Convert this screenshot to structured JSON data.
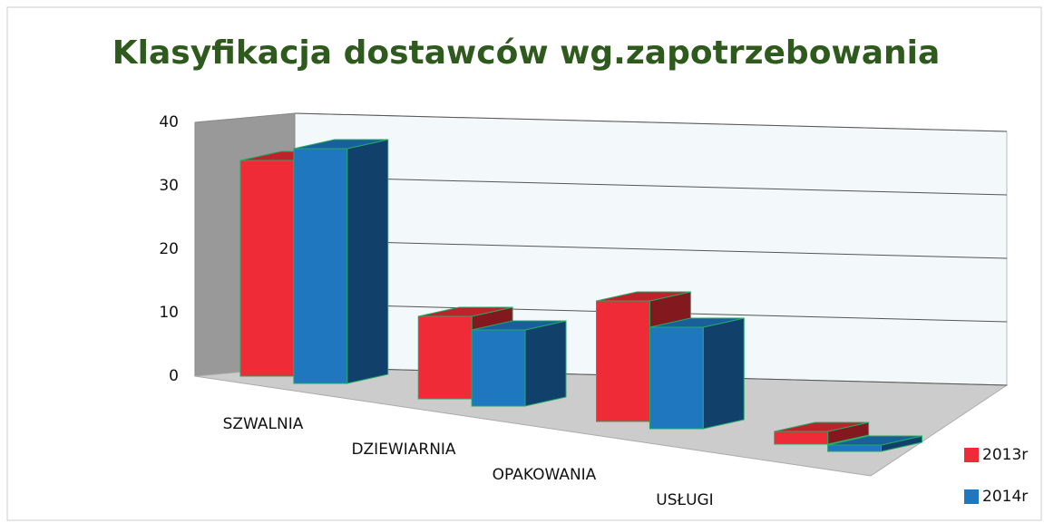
{
  "chart_data": {
    "type": "bar",
    "title": "Klasyfikacja dostawców wg.zapotrzebowania",
    "categories": [
      "SZWALNIA",
      "DZIEWIARNIA",
      "OPAKOWANIA",
      "USŁUGI"
    ],
    "series": [
      {
        "name": "2013r",
        "color": "#ee2b36",
        "values": [
          34,
          13,
          19,
          2
        ]
      },
      {
        "name": "2014r",
        "color": "#1f77c0",
        "values": [
          37,
          12,
          16,
          1
        ]
      }
    ],
    "ylim": [
      0,
      40
    ],
    "yticks": [
      0,
      10,
      20,
      30,
      40
    ],
    "grid": true,
    "legend": "right"
  }
}
